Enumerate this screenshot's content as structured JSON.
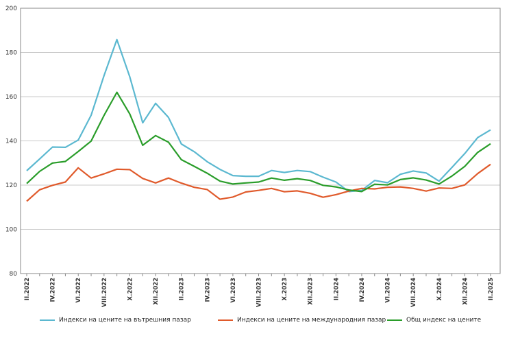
{
  "chart_data": {
    "type": "line",
    "title": "",
    "xlabel": "",
    "ylabel": "",
    "ylim": [
      80,
      200
    ],
    "yticks": [
      80,
      100,
      120,
      140,
      160,
      180,
      200
    ],
    "grid": true,
    "legend_position": "bottom",
    "categories": [
      "II.2022",
      "III.2022",
      "IV.2022",
      "V.2022",
      "VI.2022",
      "VII.2022",
      "VIII.2022",
      "IX.2022",
      "X.2022",
      "XI.2022",
      "XII.2022",
      "I.2023",
      "II.2023",
      "III.2023",
      "IV.2023",
      "V.2023",
      "VI.2023",
      "VII.2023",
      "VIII.2023",
      "IX.2023",
      "X.2023",
      "XI.2023",
      "XII.2023",
      "I.2024",
      "II.2024",
      "III.2024",
      "IV.2024",
      "V.2024",
      "VI.2024",
      "VII.2024",
      "VIII.2024",
      "IX.2024",
      "X.2024",
      "XI.2024",
      "XII.2024",
      "I.2025",
      "II.2025"
    ],
    "tick_labels": [
      "II.2022",
      "",
      "IV.2022",
      "",
      "VI.2022",
      "",
      "VIII.2022",
      "",
      "X.2022",
      "",
      "XII.2022",
      "",
      "II.2023",
      "",
      "IV.2023",
      "",
      "VI.2023",
      "",
      "VIII.2023",
      "",
      "X.2023",
      "",
      "XII.2023",
      "",
      "II.2024",
      "",
      "IV.2024",
      "",
      "VI.2024",
      "",
      "VIII.2024",
      "",
      "X.2024",
      "",
      "XII.2024",
      "",
      "II.2025"
    ],
    "series": [
      {
        "name": "Индекси на цените на вътрешния пазар",
        "color": "#5bb8d0",
        "values": [
          126.5,
          131.8,
          137.2,
          137.1,
          140.4,
          151.6,
          169.5,
          185.8,
          169.0,
          148.2,
          157.0,
          150.6,
          138.6,
          135.1,
          130.6,
          127.1,
          124.3,
          124.0,
          124.0,
          126.6,
          125.7,
          126.6,
          126.1,
          123.6,
          121.4,
          117.1,
          117.6,
          122.1,
          121.1,
          124.9,
          126.4,
          125.5,
          121.8,
          128.0,
          134.3,
          141.5,
          145.0
        ]
      },
      {
        "name": "Индекси на цените на международния пазар",
        "color": "#e05a2b",
        "values": [
          112.7,
          117.9,
          119.9,
          121.4,
          127.8,
          123.2,
          125.1,
          127.2,
          127.0,
          123.0,
          121.0,
          123.2,
          120.9,
          119.0,
          118.0,
          113.6,
          114.6,
          116.9,
          117.6,
          118.5,
          117.0,
          117.4,
          116.3,
          114.5,
          115.7,
          117.3,
          118.5,
          118.3,
          119.0,
          119.2,
          118.5,
          117.3,
          118.7,
          118.5,
          120.1,
          125.2,
          129.4
        ]
      },
      {
        "name": "Общ индекс на цените",
        "color": "#2a9d2a",
        "values": [
          120.7,
          126.2,
          130.0,
          130.7,
          135.2,
          139.9,
          151.5,
          162.0,
          152.2,
          138.0,
          142.4,
          139.4,
          131.5,
          128.5,
          125.4,
          121.8,
          120.5,
          121.0,
          121.4,
          123.2,
          122.2,
          122.9,
          122.1,
          119.9,
          119.2,
          117.8,
          117.1,
          120.4,
          120.1,
          122.5,
          123.3,
          122.3,
          120.5,
          124.1,
          128.5,
          134.8,
          138.7
        ]
      }
    ]
  }
}
